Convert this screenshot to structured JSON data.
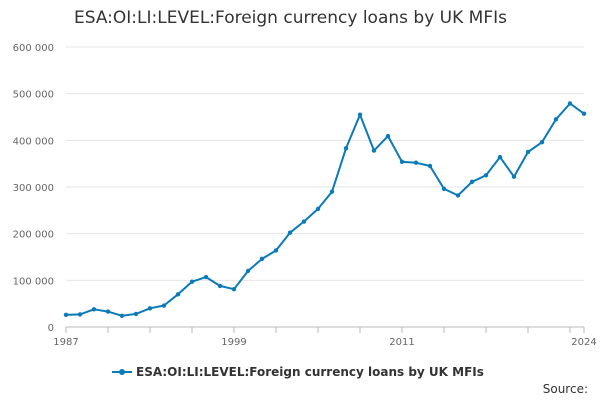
{
  "chart_data": {
    "type": "line",
    "title": "ESA:OI:LI:LEVEL:Foreign currency loans by UK MFIs",
    "xlabel": "",
    "ylabel": "",
    "xlim": [
      1987,
      2024
    ],
    "ylim": [
      0,
      600000
    ],
    "x_ticks": [
      1987,
      1999,
      2011,
      2024
    ],
    "y_ticks": [
      0,
      100000,
      200000,
      300000,
      400000,
      500000,
      600000
    ],
    "y_tick_labels": [
      "0",
      "100 000",
      "200 000",
      "300 000",
      "400 000",
      "500 000",
      "600 000"
    ],
    "grid": true,
    "legend_position": "bottom",
    "x": [
      1987,
      1988,
      1989,
      1990,
      1991,
      1992,
      1993,
      1994,
      1995,
      1996,
      1997,
      1998,
      1999,
      2000,
      2001,
      2002,
      2003,
      2004,
      2005,
      2006,
      2007,
      2008,
      2009,
      2010,
      2011,
      2012,
      2013,
      2014,
      2015,
      2016,
      2017,
      2018,
      2019,
      2020,
      2021,
      2022,
      2023,
      2024
    ],
    "series": [
      {
        "name": "ESA:OI:LI:LEVEL:Foreign currency loans by UK MFIs",
        "color": "#0b7ab8",
        "values": [
          26000,
          27000,
          38000,
          33000,
          24000,
          28000,
          40000,
          46000,
          70000,
          97000,
          107000,
          88000,
          81000,
          120000,
          146000,
          164000,
          202000,
          226000,
          253000,
          290000,
          383000,
          455000,
          378000,
          409000,
          354000,
          352000,
          345000,
          296000,
          282000,
          311000,
          325000,
          364000,
          322000,
          375000,
          396000,
          445000,
          479000,
          457000
        ]
      }
    ]
  },
  "footer": {
    "source_label": "Source:"
  }
}
